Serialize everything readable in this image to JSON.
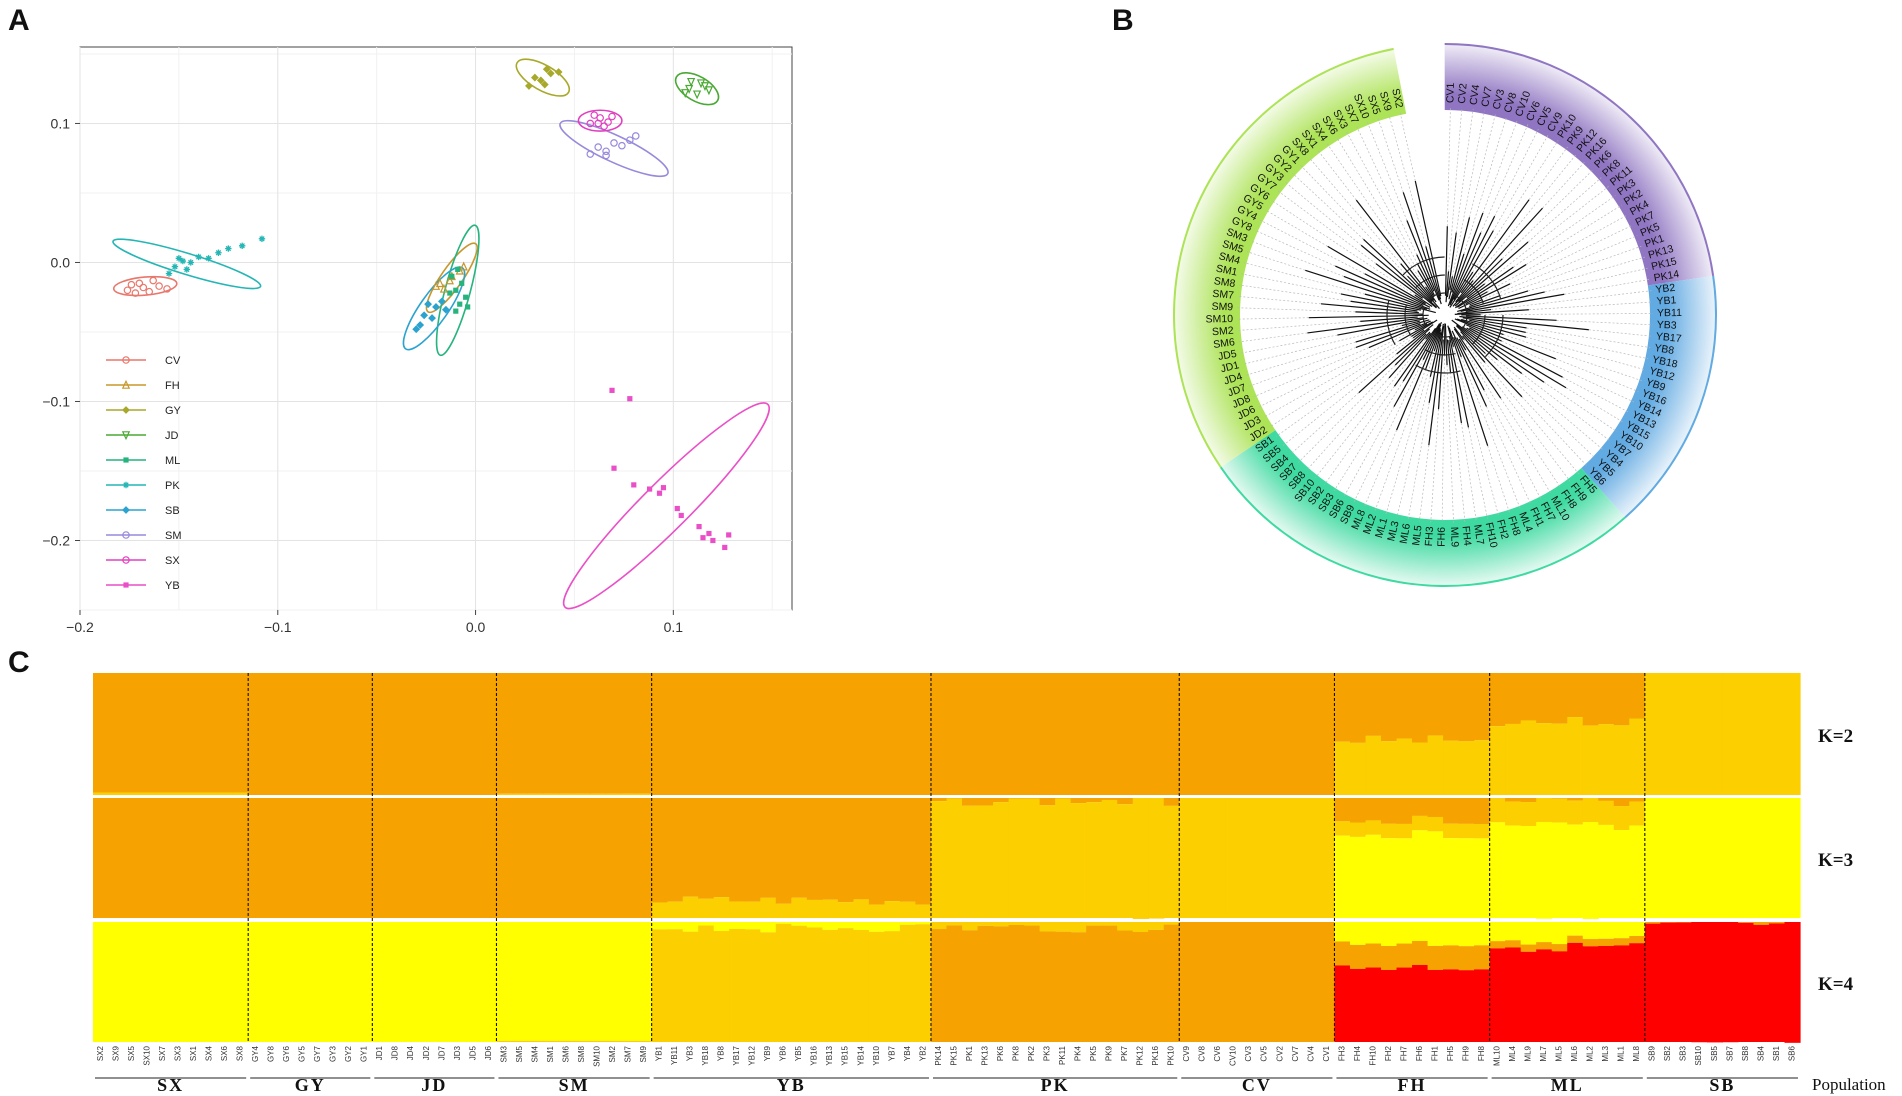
{
  "panels": {
    "a": "A",
    "b": "B",
    "c": "C"
  },
  "chart_data": [
    {
      "type": "scatter",
      "panel": "A",
      "title": "",
      "xlabel": "",
      "ylabel": "",
      "xlim": [
        -0.2,
        0.16
      ],
      "ylim": [
        -0.25,
        0.155
      ],
      "xticks": [
        -0.2,
        -0.1,
        0.0,
        0.1
      ],
      "xtick_labels": [
        "−0.2",
        "−0.1",
        "0.0",
        "0.1"
      ],
      "yticks": [
        -0.2,
        -0.1,
        0.0,
        0.1
      ],
      "ytick_labels": [
        "−0.2",
        "−0.1",
        "0.0",
        "0.1"
      ],
      "grid": true,
      "legend_position": "bottom-left",
      "series": [
        {
          "name": "CV",
          "color": "#e8776c",
          "marker": "circle",
          "ellipse": {
            "cx": -0.167,
            "cy": -0.017,
            "rx": 0.016,
            "ry": 0.0065,
            "angle": -5
          },
          "points": [
            [
              -0.176,
              -0.02
            ],
            [
              -0.17,
              -0.015
            ],
            [
              -0.165,
              -0.021
            ],
            [
              -0.16,
              -0.017
            ],
            [
              -0.172,
              -0.022
            ],
            [
              -0.163,
              -0.013
            ],
            [
              -0.156,
              -0.019
            ],
            [
              -0.168,
              -0.018
            ],
            [
              -0.174,
              -0.016
            ]
          ]
        },
        {
          "name": "FH",
          "color": "#c8972b",
          "marker": "triangle",
          "ellipse": {
            "cx": -0.012,
            "cy": -0.011,
            "rx": 0.021,
            "ry": 0.0075,
            "angle": -55
          },
          "points": [
            [
              -0.018,
              -0.015
            ],
            [
              -0.012,
              -0.01
            ],
            [
              -0.008,
              -0.006
            ],
            [
              -0.016,
              -0.019
            ],
            [
              -0.006,
              -0.003
            ],
            [
              -0.013,
              -0.013
            ],
            [
              -0.02,
              -0.017
            ]
          ]
        },
        {
          "name": "GY",
          "color": "#a8a92a",
          "marker": "diamond",
          "ellipse": {
            "cx": 0.034,
            "cy": 0.133,
            "rx": 0.015,
            "ry": 0.009,
            "angle": 30
          },
          "points": [
            [
              0.027,
              0.127
            ],
            [
              0.033,
              0.131
            ],
            [
              0.035,
              0.128
            ],
            [
              0.038,
              0.136
            ],
            [
              0.036,
              0.139
            ],
            [
              0.03,
              0.133
            ],
            [
              0.042,
              0.137
            ]
          ]
        },
        {
          "name": "JD",
          "color": "#4aa934",
          "marker": "triangle-down",
          "ellipse": {
            "cx": 0.112,
            "cy": 0.125,
            "rx": 0.012,
            "ry": 0.0088,
            "angle": 30
          },
          "points": [
            [
              0.108,
              0.125
            ],
            [
              0.112,
              0.121
            ],
            [
              0.116,
              0.127
            ],
            [
              0.109,
              0.13
            ],
            [
              0.114,
              0.129
            ],
            [
              0.118,
              0.124
            ],
            [
              0.106,
              0.122
            ]
          ]
        },
        {
          "name": "ML",
          "color": "#25b47e",
          "marker": "square-cross",
          "ellipse": {
            "cx": -0.009,
            "cy": -0.02,
            "rx": 0.034,
            "ry": 0.009,
            "angle": -75
          },
          "points": [
            [
              -0.01,
              -0.02
            ],
            [
              -0.008,
              -0.03
            ],
            [
              -0.012,
              -0.01
            ],
            [
              -0.005,
              -0.025
            ],
            [
              -0.01,
              -0.035
            ],
            [
              -0.007,
              -0.015
            ],
            [
              -0.013,
              -0.022
            ],
            [
              -0.004,
              -0.032
            ],
            [
              -0.009,
              -0.005
            ]
          ]
        },
        {
          "name": "PK",
          "color": "#24b5b5",
          "marker": "asterisk",
          "ellipse": {
            "cx": -0.146,
            "cy": -0.001,
            "rx": 0.039,
            "ry": 0.0075,
            "angle": 17
          },
          "points": [
            [
              -0.152,
              -0.003
            ],
            [
              -0.148,
              0.001
            ],
            [
              -0.146,
              -0.005
            ],
            [
              -0.144,
              0.0
            ],
            [
              -0.14,
              0.004
            ],
            [
              -0.135,
              0.003
            ],
            [
              -0.13,
              0.007
            ],
            [
              -0.125,
              0.01
            ],
            [
              -0.118,
              0.012
            ],
            [
              -0.108,
              0.017
            ],
            [
              -0.15,
              0.003
            ],
            [
              -0.155,
              -0.008
            ]
          ]
        },
        {
          "name": "SB",
          "color": "#2aa3cf",
          "marker": "diamond-plus",
          "ellipse": {
            "cx": -0.021,
            "cy": -0.033,
            "rx": 0.025,
            "ry": 0.01,
            "angle": -55
          },
          "points": [
            [
              -0.026,
              -0.038
            ],
            [
              -0.02,
              -0.032
            ],
            [
              -0.017,
              -0.028
            ],
            [
              -0.028,
              -0.045
            ],
            [
              -0.022,
              -0.04
            ],
            [
              -0.015,
              -0.034
            ],
            [
              -0.024,
              -0.03
            ],
            [
              -0.03,
              -0.048
            ]
          ]
        },
        {
          "name": "SM",
          "color": "#9889dc",
          "marker": "circle-plus",
          "ellipse": {
            "cx": 0.07,
            "cy": 0.082,
            "rx": 0.03,
            "ry": 0.0095,
            "angle": 25
          },
          "points": [
            [
              0.058,
              0.078
            ],
            [
              0.062,
              0.083
            ],
            [
              0.066,
              0.08
            ],
            [
              0.07,
              0.086
            ],
            [
              0.074,
              0.084
            ],
            [
              0.078,
              0.088
            ],
            [
              0.066,
              0.077
            ],
            [
              0.081,
              0.091
            ]
          ]
        },
        {
          "name": "SX",
          "color": "#e040c0",
          "marker": "circle-cross",
          "ellipse": {
            "cx": 0.063,
            "cy": 0.102,
            "rx": 0.011,
            "ry": 0.0075,
            "angle": 0
          },
          "points": [
            [
              0.058,
              0.1
            ],
            [
              0.063,
              0.104
            ],
            [
              0.067,
              0.101
            ],
            [
              0.06,
              0.106
            ],
            [
              0.065,
              0.098
            ],
            [
              0.069,
              0.105
            ],
            [
              0.062,
              0.1
            ]
          ]
        },
        {
          "name": "YB",
          "color": "#ea4fc7",
          "marker": "square",
          "ellipse": {
            "cx": 0.0965,
            "cy": -0.175,
            "rx": 0.0725,
            "ry": 0.017,
            "angle": -45
          },
          "points": [
            [
              0.069,
              -0.092
            ],
            [
              0.078,
              -0.098
            ],
            [
              0.07,
              -0.148
            ],
            [
              0.08,
              -0.16
            ],
            [
              0.088,
              -0.163
            ],
            [
              0.093,
              -0.166
            ],
            [
              0.095,
              -0.162
            ],
            [
              0.102,
              -0.177
            ],
            [
              0.104,
              -0.182
            ],
            [
              0.113,
              -0.19
            ],
            [
              0.118,
              -0.195
            ],
            [
              0.12,
              -0.2
            ],
            [
              0.115,
              -0.198
            ],
            [
              0.126,
              -0.205
            ],
            [
              0.128,
              -0.196
            ]
          ]
        }
      ]
    },
    {
      "type": "tree",
      "panel": "B",
      "layout": "circular",
      "groups": [
        {
          "name": "purple",
          "color": "#8a6fbf",
          "labels": [
            "CV1",
            "CV2",
            "CV4",
            "CV7",
            "CV3",
            "CV8",
            "CV10",
            "CV6",
            "CV5",
            "CV9",
            "PK10",
            "PK9",
            "PK12",
            "PK16",
            "PK6",
            "PK8",
            "PK11",
            "PK3",
            "PK2",
            "PK4",
            "PK7",
            "PK5",
            "PK1",
            "PK13",
            "PK15",
            "PK14"
          ]
        },
        {
          "name": "blue",
          "color": "#5aa5e0",
          "labels": [
            "YB2",
            "YB1",
            "YB11",
            "YB3",
            "YB17",
            "YB8",
            "YB18",
            "YB12",
            "YB9",
            "YB16",
            "YB14",
            "YB13",
            "YB15",
            "YB10",
            "YB7",
            "YB4",
            "YB5",
            "YB6"
          ]
        },
        {
          "name": "green",
          "color": "#34d89c",
          "labels": [
            "FH5",
            "FH9",
            "FH8",
            "ML10",
            "FH7",
            "FH1",
            "ML4",
            "FH8",
            "FH2",
            "FH10",
            "ML7",
            "FH4",
            "ML9",
            "FH6",
            "FH3",
            "ML5",
            "ML6",
            "ML3",
            "ML1",
            "ML2",
            "ML8",
            "SB9",
            "SB6",
            "SB3",
            "SB2",
            "SB10",
            "SB8",
            "SB7",
            "SB4",
            "SB5",
            "SB1"
          ]
        },
        {
          "name": "lime",
          "color": "#a9e24e",
          "labels": [
            "JD2",
            "JD3",
            "JD6",
            "JD8",
            "JD7",
            "JD4",
            "JD1",
            "JD5",
            "SM6",
            "SM2",
            "SM10",
            "SM9",
            "SM7",
            "SM8",
            "SM1",
            "SM4",
            "SM5",
            "SM3",
            "GY8",
            "GY4",
            "GY5",
            "GY6",
            "GY7",
            "GY3",
            "GY2",
            "GY1",
            "SX8",
            "SX1",
            "SX4",
            "SX6",
            "SX3",
            "SX7",
            "SX10",
            "SX5",
            "SX9",
            "SX2"
          ]
        }
      ]
    },
    {
      "type": "bar",
      "subtype": "stacked-admixture",
      "panel": "C",
      "xlabel": "Population",
      "populations": [
        {
          "name": "SX",
          "count": 10,
          "labels": [
            "SX2",
            "SX9",
            "SX5",
            "SX10",
            "SX7",
            "SX3",
            "SX1",
            "SX4",
            "SX6",
            "SX8"
          ]
        },
        {
          "name": "GY",
          "count": 8,
          "labels": [
            "GY4",
            "GY8",
            "GY6",
            "GY5",
            "GY7",
            "GY3",
            "GY2",
            "GY1"
          ]
        },
        {
          "name": "JD",
          "count": 8,
          "labels": [
            "JD1",
            "JD8",
            "JD4",
            "JD2",
            "JD7",
            "JD3",
            "JD5",
            "JD6"
          ]
        },
        {
          "name": "SM",
          "count": 10,
          "labels": [
            "SM3",
            "SM5",
            "SM4",
            "SM1",
            "SM6",
            "SM8",
            "SM10",
            "SM2",
            "SM7",
            "SM9"
          ]
        },
        {
          "name": "YB",
          "count": 18,
          "labels": [
            "YB1",
            "YB11",
            "YB3",
            "YB18",
            "YB8",
            "YB17",
            "YB12",
            "YB9",
            "YB6",
            "YB5",
            "YB16",
            "YB13",
            "YB15",
            "YB14",
            "YB10",
            "YB7",
            "YB4",
            "YB2"
          ]
        },
        {
          "name": "PK",
          "count": 16,
          "labels": [
            "PK14",
            "PK15",
            "PK1",
            "PK13",
            "PK6",
            "PK8",
            "PK2",
            "PK3",
            "PK11",
            "PK4",
            "PK5",
            "PK9",
            "PK7",
            "PK12",
            "PK16",
            "PK10"
          ]
        },
        {
          "name": "CV",
          "count": 10,
          "labels": [
            "CV9",
            "CV8",
            "CV6",
            "CV10",
            "CV3",
            "CV5",
            "CV2",
            "CV7",
            "CV4",
            "CV1"
          ]
        },
        {
          "name": "FH",
          "count": 10,
          "labels": [
            "FH3",
            "FH4",
            "FH10",
            "FH2",
            "FH7",
            "FH6",
            "FH1",
            "FH5",
            "FH9",
            "FH8"
          ]
        },
        {
          "name": "ML",
          "count": 10,
          "labels": [
            "ML10",
            "ML4",
            "ML9",
            "ML7",
            "ML5",
            "ML6",
            "ML2",
            "ML3",
            "ML1",
            "ML8"
          ]
        },
        {
          "name": "SB",
          "count": 10,
          "labels": [
            "SB9",
            "SB2",
            "SB3",
            "SB10",
            "SB5",
            "SB7",
            "SB8",
            "SB4",
            "SB1",
            "SB6"
          ]
        }
      ],
      "rows": [
        {
          "label": "K=2",
          "colors": [
            "#f6a200",
            "#fccf00"
          ],
          "population_means": {
            "SX": [
              0.98,
              0.02
            ],
            "GY": [
              1.0,
              0.0
            ],
            "JD": [
              1.0,
              0.0
            ],
            "SM": [
              0.99,
              0.01
            ],
            "YB": [
              1.0,
              0.0
            ],
            "PK": [
              1.0,
              0.0
            ],
            "CV": [
              1.0,
              0.0
            ],
            "FH": [
              0.55,
              0.45
            ],
            "ML": [
              0.4,
              0.6
            ],
            "SB": [
              0.0,
              1.0
            ]
          }
        },
        {
          "label": "K=3",
          "colors": [
            "#f6a200",
            "#fccf00",
            "#ffff00"
          ],
          "population_means": {
            "SX": [
              1.0,
              0.0,
              0.0
            ],
            "GY": [
              1.0,
              0.0,
              0.0
            ],
            "JD": [
              1.0,
              0.0,
              0.0
            ],
            "SM": [
              1.0,
              0.0,
              0.0
            ],
            "YB": [
              0.85,
              0.15,
              0.0
            ],
            "PK": [
              0.03,
              0.97,
              0.0
            ],
            "CV": [
              0.0,
              1.0,
              0.0
            ],
            "FH": [
              0.18,
              0.12,
              0.7
            ],
            "ML": [
              0.03,
              0.2,
              0.77
            ],
            "SB": [
              0.0,
              0.0,
              1.0
            ]
          }
        },
        {
          "label": "K=4",
          "colors": [
            "#ffff00",
            "#fccf00",
            "#f6a200",
            "#ff0000"
          ],
          "population_means": {
            "SX": [
              1.0,
              0.0,
              0.0,
              0.0
            ],
            "GY": [
              1.0,
              0.0,
              0.0,
              0.0
            ],
            "JD": [
              1.0,
              0.0,
              0.0,
              0.0
            ],
            "SM": [
              0.99,
              0.01,
              0.0,
              0.0
            ],
            "YB": [
              0.05,
              0.95,
              0.0,
              0.0
            ],
            "PK": [
              0.0,
              0.05,
              0.95,
              0.0
            ],
            "CV": [
              0.0,
              0.0,
              1.0,
              0.0
            ],
            "FH": [
              0.18,
              0.0,
              0.2,
              0.62
            ],
            "ML": [
              0.15,
              0.0,
              0.06,
              0.79
            ],
            "SB": [
              0.0,
              0.0,
              0.03,
              0.97
            ]
          }
        }
      ]
    }
  ]
}
